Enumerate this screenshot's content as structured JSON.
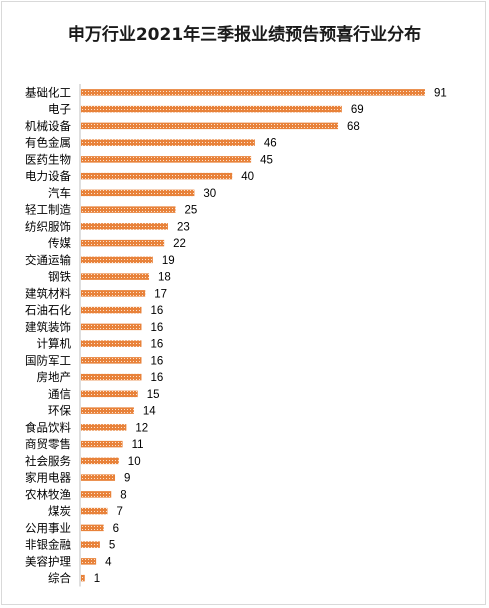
{
  "chart_data": {
    "type": "bar",
    "orientation": "horizontal",
    "title": "申万行业2021年三季报业绩预告预喜行业分布",
    "categories": [
      "基础化工",
      "电子",
      "机械设备",
      "有色金属",
      "医药生物",
      "电力设备",
      "汽车",
      "轻工制造",
      "纺织服饰",
      "传媒",
      "交通运输",
      "钢铁",
      "建筑材料",
      "石油石化",
      "建筑装饰",
      "计算机",
      "国防军工",
      "房地产",
      "通信",
      "环保",
      "食品饮料",
      "商贸零售",
      "社会服务",
      "家用电器",
      "农林牧渔",
      "煤炭",
      "公用事业",
      "非银金融",
      "美容护理",
      "综合"
    ],
    "values": [
      91,
      69,
      68,
      46,
      45,
      40,
      30,
      25,
      23,
      22,
      19,
      18,
      17,
      16,
      16,
      16,
      16,
      16,
      15,
      14,
      12,
      11,
      10,
      9,
      8,
      7,
      6,
      5,
      4,
      1
    ],
    "xlim": [
      0,
      100
    ],
    "grid": false,
    "legend": "none",
    "data_labels": true,
    "bar_color": "#e8823a",
    "bar_pattern": "dotted-white"
  }
}
